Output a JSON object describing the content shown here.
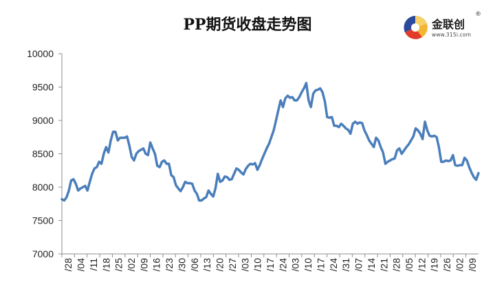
{
  "chart_data": {
    "type": "line",
    "title": "PP期货收盘走势图",
    "xlabel": "",
    "ylabel": "",
    "ylim": [
      7000,
      10000
    ],
    "yticks": [
      7000,
      7500,
      8000,
      8500,
      9000,
      9500,
      10000
    ],
    "grid": false,
    "x_tick_labels": [
      "/28",
      "/04",
      "/11",
      "/18",
      "/25",
      "/02",
      "/09",
      "/16",
      "/23",
      "/30",
      "/06",
      "/13",
      "/20",
      "/27",
      "/03",
      "/10",
      "/17",
      "/24",
      "/03",
      "/10",
      "/17",
      "/24",
      "/31",
      "/07",
      "/14",
      "/21",
      "/28",
      "/05",
      "/12",
      "/19",
      "/26",
      "/02",
      "/09"
    ],
    "series": [
      {
        "color": "#4a7ebb",
        "values": [
          7820,
          7800,
          7850,
          7950,
          8100,
          8120,
          8050,
          7950,
          7980,
          8000,
          8020,
          7950,
          8080,
          8200,
          8280,
          8300,
          8380,
          8350,
          8500,
          8600,
          8520,
          8700,
          8830,
          8830,
          8700,
          8740,
          8740,
          8740,
          8760,
          8620,
          8450,
          8400,
          8500,
          8540,
          8560,
          8580,
          8500,
          8480,
          8670,
          8580,
          8500,
          8320,
          8300,
          8380,
          8400,
          8350,
          8350,
          8180,
          8150,
          8030,
          7980,
          7940,
          8000,
          8080,
          8060,
          8060,
          8050,
          7950,
          7900,
          7800,
          7800,
          7830,
          7850,
          7950,
          7900,
          7860,
          7980,
          8200,
          8080,
          8100,
          8160,
          8150,
          8110,
          8120,
          8200,
          8280,
          8260,
          8220,
          8190,
          8270,
          8320,
          8350,
          8340,
          8360,
          8260,
          8330,
          8420,
          8500,
          8580,
          8650,
          8750,
          8850,
          9000,
          9150,
          9300,
          9200,
          9330,
          9370,
          9340,
          9350,
          9300,
          9300,
          9350,
          9420,
          9480,
          9560,
          9300,
          9200,
          9400,
          9450,
          9460,
          9480,
          9420,
          9280,
          9050,
          9040,
          9050,
          8920,
          8920,
          8900,
          8950,
          8920,
          8880,
          8860,
          8800,
          8950,
          8980,
          8950,
          8970,
          8960,
          8850,
          8780,
          8700,
          8650,
          8600,
          8740,
          8700,
          8600,
          8520,
          8350,
          8380,
          8400,
          8420,
          8430,
          8550,
          8580,
          8500,
          8550,
          8600,
          8640,
          8700,
          8760,
          8880,
          8850,
          8800,
          8720,
          8980,
          8850,
          8770,
          8760,
          8770,
          8750,
          8600,
          8380,
          8380,
          8400,
          8390,
          8400,
          8480,
          8330,
          8320,
          8330,
          8330,
          8440,
          8400,
          8300,
          8220,
          8150,
          8110,
          8210
        ]
      }
    ]
  },
  "logo": {
    "name": "金联创",
    "registered_mark": "®",
    "url_text": "www.315i.com",
    "colors": [
      "#2c4a9c",
      "#e23b2a",
      "#f2b632"
    ]
  }
}
